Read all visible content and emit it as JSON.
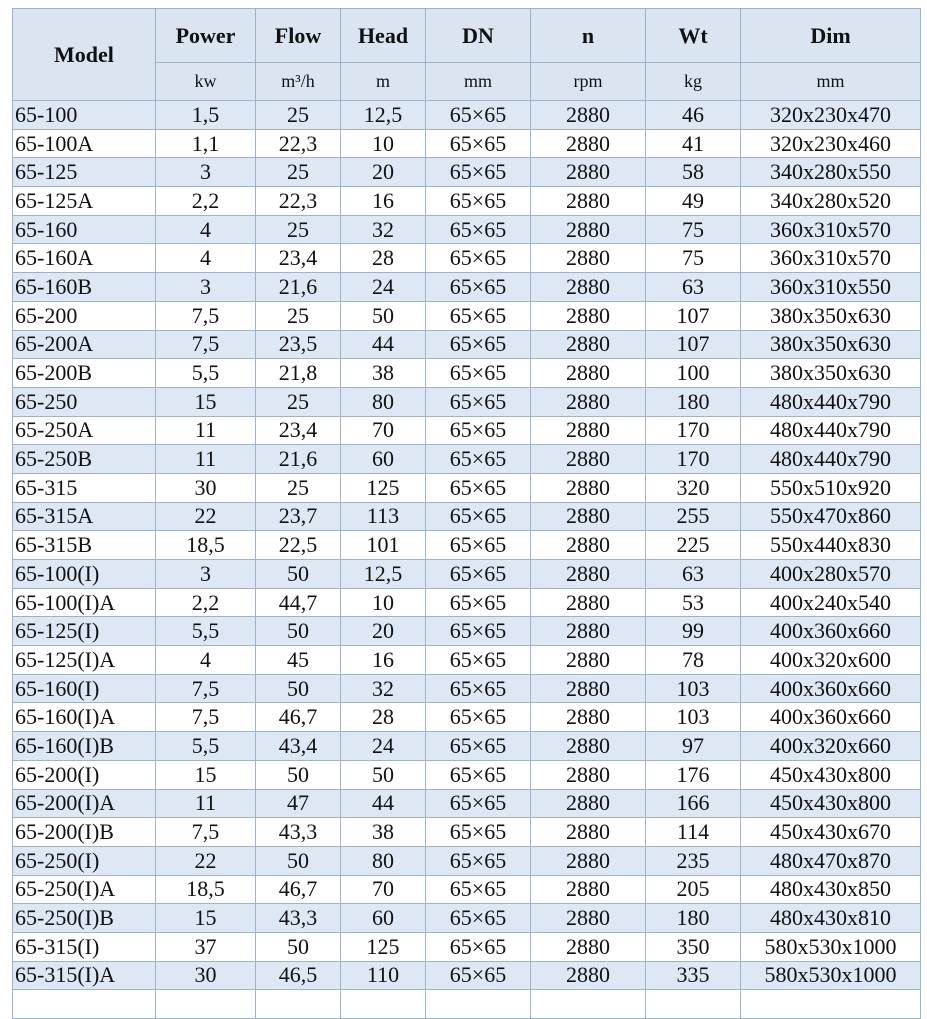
{
  "table": {
    "header": [
      "Model",
      "Power",
      "Flow",
      "Head",
      "DN",
      "n",
      "Wt",
      "Dim"
    ],
    "units": [
      "kw",
      "m³/h",
      "m",
      "mm",
      "rpm",
      "kg",
      "mm"
    ],
    "rows": [
      [
        "65-100",
        "1,5",
        "25",
        "12,5",
        "65×65",
        "2880",
        "46",
        "320x230x470"
      ],
      [
        "65-100A",
        "1,1",
        "22,3",
        "10",
        "65×65",
        "2880",
        "41",
        "320x230x460"
      ],
      [
        "65-125",
        "3",
        "25",
        "20",
        "65×65",
        "2880",
        "58",
        "340x280x550"
      ],
      [
        "65-125A",
        "2,2",
        "22,3",
        "16",
        "65×65",
        "2880",
        "49",
        "340x280x520"
      ],
      [
        "65-160",
        "4",
        "25",
        "32",
        "65×65",
        "2880",
        "75",
        "360x310x570"
      ],
      [
        "65-160A",
        "4",
        "23,4",
        "28",
        "65×65",
        "2880",
        "75",
        "360x310x570"
      ],
      [
        "65-160B",
        "3",
        "21,6",
        "24",
        "65×65",
        "2880",
        "63",
        "360x310x550"
      ],
      [
        "65-200",
        "7,5",
        "25",
        "50",
        "65×65",
        "2880",
        "107",
        "380x350x630"
      ],
      [
        "65-200A",
        "7,5",
        "23,5",
        "44",
        "65×65",
        "2880",
        "107",
        "380x350x630"
      ],
      [
        "65-200B",
        "5,5",
        "21,8",
        "38",
        "65×65",
        "2880",
        "100",
        "380x350x630"
      ],
      [
        "65-250",
        "15",
        "25",
        "80",
        "65×65",
        "2880",
        "180",
        "480x440x790"
      ],
      [
        "65-250A",
        "11",
        "23,4",
        "70",
        "65×65",
        "2880",
        "170",
        "480x440x790"
      ],
      [
        "65-250B",
        "11",
        "21,6",
        "60",
        "65×65",
        "2880",
        "170",
        "480x440x790"
      ],
      [
        "65-315",
        "30",
        "25",
        "125",
        "65×65",
        "2880",
        "320",
        "550x510x920"
      ],
      [
        "65-315A",
        "22",
        "23,7",
        "113",
        "65×65",
        "2880",
        "255",
        "550x470x860"
      ],
      [
        "65-315B",
        "18,5",
        "22,5",
        "101",
        "65×65",
        "2880",
        "225",
        "550x440x830"
      ],
      [
        "65-100(I)",
        "3",
        "50",
        "12,5",
        "65×65",
        "2880",
        "63",
        "400x280x570"
      ],
      [
        "65-100(I)A",
        "2,2",
        "44,7",
        "10",
        "65×65",
        "2880",
        "53",
        "400x240x540"
      ],
      [
        "65-125(I)",
        "5,5",
        "50",
        "20",
        "65×65",
        "2880",
        "99",
        "400x360x660"
      ],
      [
        "65-125(I)A",
        "4",
        "45",
        "16",
        "65×65",
        "2880",
        "78",
        "400x320x600"
      ],
      [
        "65-160(I)",
        "7,5",
        "50",
        "32",
        "65×65",
        "2880",
        "103",
        "400x360x660"
      ],
      [
        "65-160(I)A",
        "7,5",
        "46,7",
        "28",
        "65×65",
        "2880",
        "103",
        "400x360x660"
      ],
      [
        "65-160(I)B",
        "5,5",
        "43,4",
        "24",
        "65×65",
        "2880",
        "97",
        "400x320x660"
      ],
      [
        "65-200(I)",
        "15",
        "50",
        "50",
        "65×65",
        "2880",
        "176",
        "450x430x800"
      ],
      [
        "65-200(I)A",
        "11",
        "47",
        "44",
        "65×65",
        "2880",
        "166",
        "450x430x800"
      ],
      [
        "65-200(I)B",
        "7,5",
        "43,3",
        "38",
        "65×65",
        "2880",
        "114",
        "450x430x670"
      ],
      [
        "65-250(I)",
        "22",
        "50",
        "80",
        "65×65",
        "2880",
        "235",
        "480x470x870"
      ],
      [
        "65-250(I)A",
        "18,5",
        "46,7",
        "70",
        "65×65",
        "2880",
        "205",
        "480x430x850"
      ],
      [
        "65-250(I)B",
        "15",
        "43,3",
        "60",
        "65×65",
        "2880",
        "180",
        "480x430x810"
      ],
      [
        "65-315(I)",
        "37",
        "50",
        "125",
        "65×65",
        "2880",
        "350",
        "580x530x1000"
      ],
      [
        "65-315(I)A",
        "30",
        "46,5",
        "110",
        "65×65",
        "2880",
        "335",
        "580x530x1000"
      ]
    ]
  }
}
